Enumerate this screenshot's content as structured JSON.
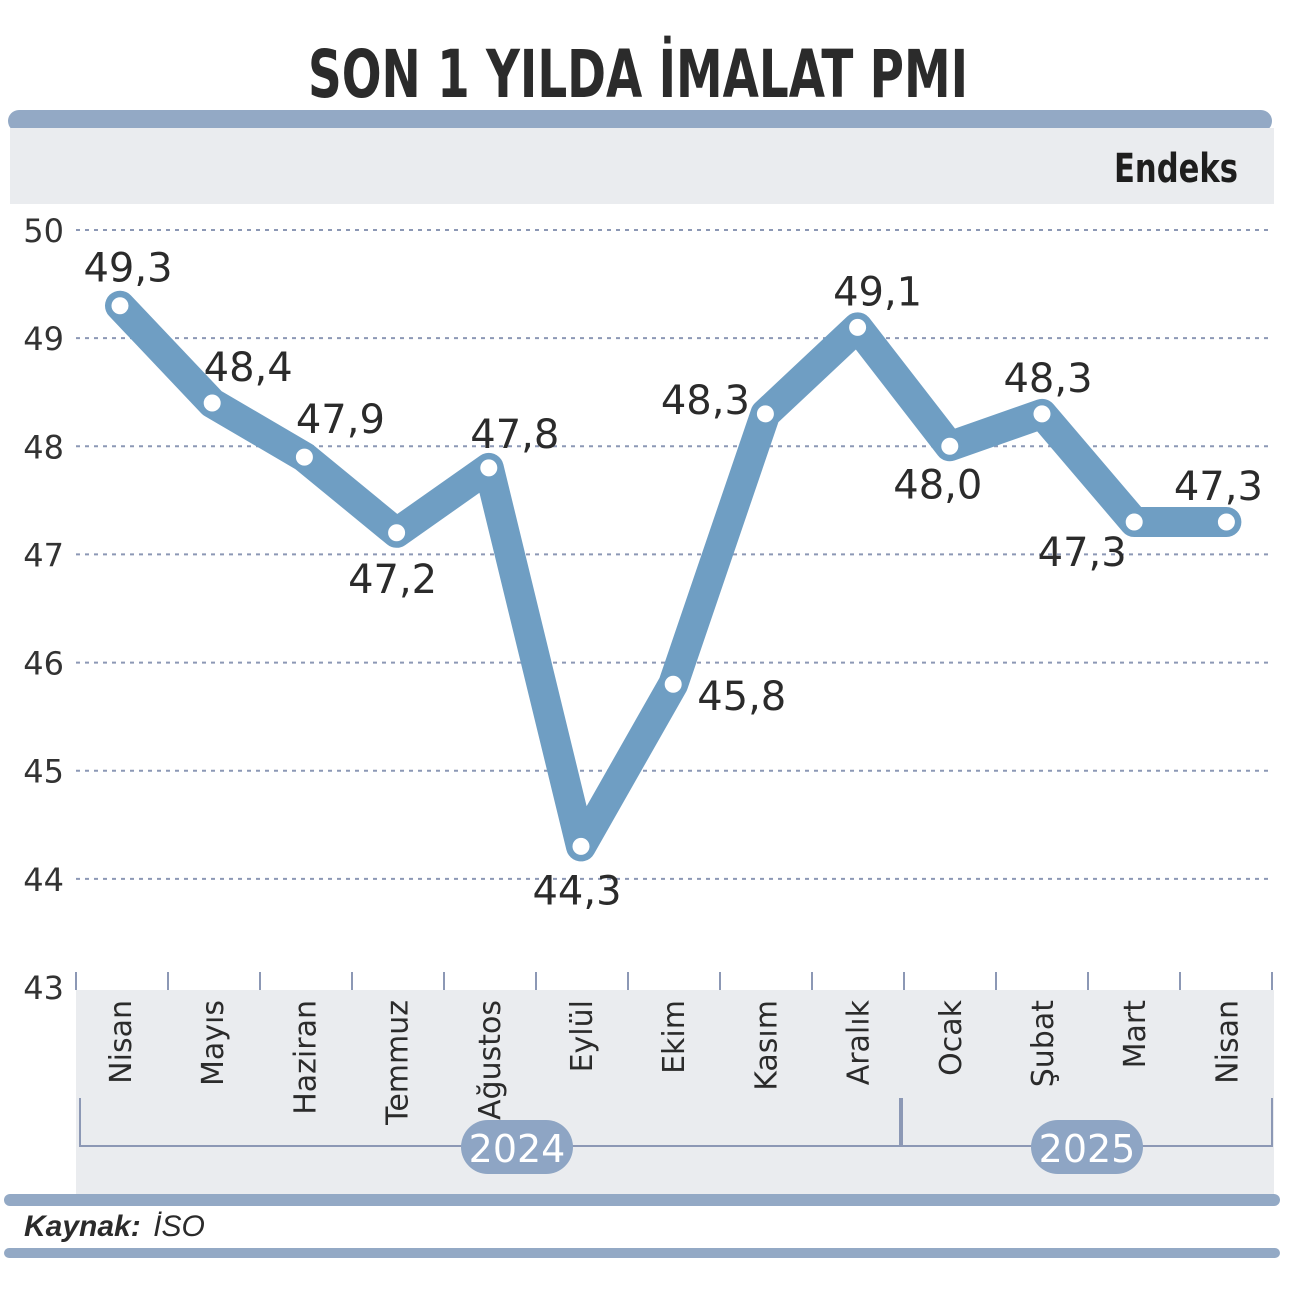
{
  "colors": {
    "line": "#6f9ec3",
    "panel": "#eaecef",
    "bar": "#93a9c5",
    "grid": "#8c98b5",
    "badge": "#8ea5c4"
  },
  "chart_data": {
    "type": "line",
    "title": "SON 1 YILDA İMALAT PMI",
    "ylabel": "Endeks",
    "ylim": [
      43,
      50
    ],
    "yticks": [
      "50",
      "49",
      "48",
      "47",
      "46",
      "45",
      "44",
      "43"
    ],
    "categories": [
      "Nisan",
      "Mayıs",
      "Haziran",
      "Temmuz",
      "Ağustos",
      "Eylül",
      "Ekim",
      "Kasım",
      "Aralık",
      "Ocak",
      "Şubat",
      "Mart",
      "Nisan"
    ],
    "values": [
      49.3,
      48.4,
      47.9,
      47.2,
      47.8,
      44.3,
      45.8,
      48.3,
      49.1,
      48.0,
      48.3,
      47.3,
      47.3
    ],
    "labels": [
      "49,3",
      "48,4",
      "47,9",
      "47,2",
      "47,8",
      "44,3",
      "45,8",
      "48,3",
      "49,1",
      "48,0",
      "48,3",
      "47,3",
      "47,3"
    ],
    "years": [
      "2024",
      "2025"
    ],
    "grid": true
  },
  "source": {
    "label": "Kaynak:",
    "value": "İSO"
  }
}
